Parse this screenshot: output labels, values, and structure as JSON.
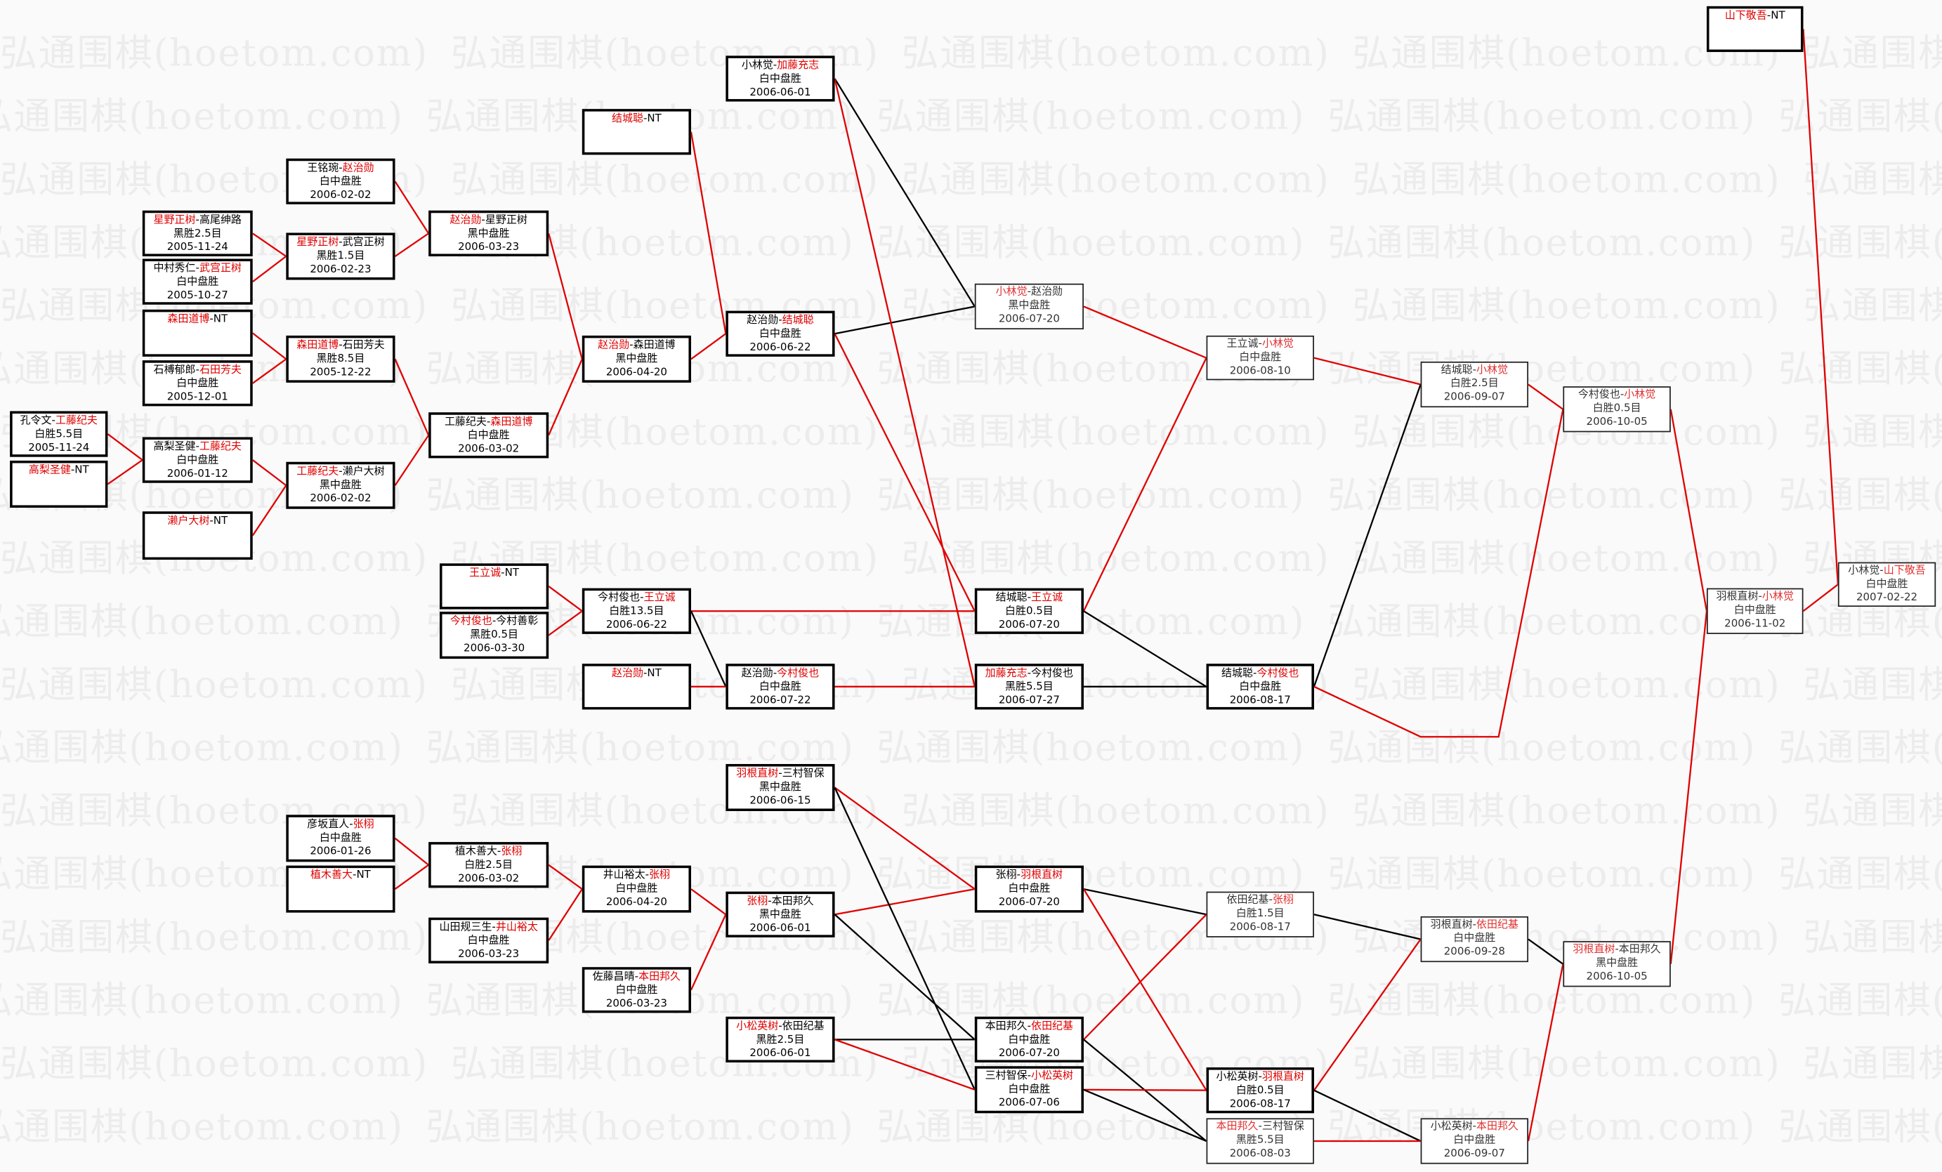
{
  "watermark": "弘通围棋(hoetom.com)",
  "colors": {
    "winner": "#e00000",
    "loser_line": "#000000",
    "winner_line": "#e00000"
  },
  "matches": [
    {
      "a": "孔令文",
      "b": "工藤纪夫",
      "w": 2,
      "result": "白胜5.5目",
      "date": "2005-11-24"
    },
    {
      "a": "高梨圣健",
      "b": "NT",
      "w": 1
    },
    {
      "a": "星野正树",
      "b": "高尾绅路",
      "w": 1,
      "result": "黑胜2.5目",
      "date": "2005-11-24"
    },
    {
      "a": "中村秀仁",
      "b": "武宫正树",
      "w": 2,
      "result": "白中盘胜",
      "date": "2005-10-27"
    },
    {
      "a": "森田道博",
      "b": "NT",
      "w": 1
    },
    {
      "a": "石榑郁郎",
      "b": "石田芳夫",
      "w": 2,
      "result": "白中盘胜",
      "date": "2005-12-01"
    },
    {
      "a": "高梨圣健",
      "b": "工藤纪夫",
      "w": 2,
      "result": "白中盘胜",
      "date": "2006-01-12"
    },
    {
      "a": "濑户大树",
      "b": "NT",
      "w": 1
    },
    {
      "a": "王铭琬",
      "b": "赵治勋",
      "w": 2,
      "result": "白中盘胜",
      "date": "2006-02-02"
    },
    {
      "a": "星野正树",
      "b": "武宫正树",
      "w": 1,
      "result": "黑胜1.5目",
      "date": "2006-02-23"
    },
    {
      "a": "森田道博",
      "b": "石田芳夫",
      "w": 1,
      "result": "黑胜8.5目",
      "date": "2005-12-22"
    },
    {
      "a": "工藤纪夫",
      "b": "濑户大树",
      "w": 1,
      "result": "黑中盘胜",
      "date": "2006-02-02"
    },
    {
      "a": "彦坂直人",
      "b": "张栩",
      "w": 2,
      "result": "白中盘胜",
      "date": "2006-01-26"
    },
    {
      "a": "植木善大",
      "b": "NT",
      "w": 1
    },
    {
      "a": "赵治勋",
      "b": "星野正树",
      "w": 1,
      "result": "黑中盘胜",
      "date": "2006-03-23"
    },
    {
      "a": "工藤纪夫",
      "b": "森田道博",
      "w": 2,
      "result": "白中盘胜",
      "date": "2006-03-02"
    },
    {
      "a": "王立诚",
      "b": "NT",
      "w": 1
    },
    {
      "a": "今村俊也",
      "b": "今村善彰",
      "w": 1,
      "result": "黑胜0.5目",
      "date": "2006-03-30"
    },
    {
      "a": "植木善大",
      "b": "张栩",
      "w": 2,
      "result": "白胜2.5目",
      "date": "2006-03-02"
    },
    {
      "a": "山田规三生",
      "b": "井山裕太",
      "w": 2,
      "result": "白中盘胜",
      "date": "2006-03-23"
    },
    {
      "a": "结城聪",
      "b": "NT",
      "w": 1
    },
    {
      "a": "赵治勋",
      "b": "森田道博",
      "w": 1,
      "result": "黑中盘胜",
      "date": "2006-04-20"
    },
    {
      "a": "今村俊也",
      "b": "王立诚",
      "w": 2,
      "result": "白胜13.5目",
      "date": "2006-06-22"
    },
    {
      "a": "赵治勋",
      "b": "NT",
      "w": 1
    },
    {
      "a": "井山裕太",
      "b": "张栩",
      "w": 2,
      "result": "白中盘胜",
      "date": "2006-04-20"
    },
    {
      "a": "佐藤昌晴",
      "b": "本田邦久",
      "w": 2,
      "result": "白中盘胜",
      "date": "2006-03-23"
    },
    {
      "a": "小林觉",
      "b": "加藤充志",
      "w": 2,
      "result": "白中盘胜",
      "date": "2006-06-01"
    },
    {
      "a": "赵治勋",
      "b": "结城聪",
      "w": 2,
      "result": "白中盘胜",
      "date": "2006-06-22"
    },
    {
      "a": "赵治勋",
      "b": "今村俊也",
      "w": 2,
      "result": "白中盘胜",
      "date": "2006-07-22"
    },
    {
      "a": "羽根直树",
      "b": "三村智保",
      "w": 1,
      "result": "黑中盘胜",
      "date": "2006-06-15"
    },
    {
      "a": "张栩",
      "b": "本田邦久",
      "w": 1,
      "result": "黑中盘胜",
      "date": "2006-06-01"
    },
    {
      "a": "小松英树",
      "b": "依田纪基",
      "w": 1,
      "result": "黑胜2.5目",
      "date": "2006-06-01"
    },
    {
      "a": "小林觉",
      "b": "赵治勋",
      "w": 1,
      "result": "黑中盘胜",
      "date": "2006-07-20"
    },
    {
      "a": "结城聪",
      "b": "王立诚",
      "w": 2,
      "result": "白胜0.5目",
      "date": "2006-07-20"
    },
    {
      "a": "加藤充志",
      "b": "今村俊也",
      "w": 1,
      "result": "黑胜5.5目",
      "date": "2006-07-27"
    },
    {
      "a": "张栩",
      "b": "羽根直树",
      "w": 2,
      "result": "白中盘胜",
      "date": "2006-07-20"
    },
    {
      "a": "本田邦久",
      "b": "依田纪基",
      "w": 2,
      "result": "白中盘胜",
      "date": "2006-07-20"
    },
    {
      "a": "三村智保",
      "b": "小松英树",
      "w": 2,
      "result": "白中盘胜",
      "date": "2006-07-06"
    },
    {
      "a": "王立诚",
      "b": "小林觉",
      "w": 2,
      "result": "白中盘胜",
      "date": "2006-08-10"
    },
    {
      "a": "结城聪",
      "b": "今村俊也",
      "w": 2,
      "result": "白中盘胜",
      "date": "2006-08-17"
    },
    {
      "a": "依田纪基",
      "b": "张栩",
      "w": 2,
      "result": "白胜1.5目",
      "date": "2006-08-17"
    },
    {
      "a": "小松英树",
      "b": "羽根直树",
      "w": 2,
      "result": "白胜0.5目",
      "date": "2006-08-17"
    },
    {
      "a": "本田邦久",
      "b": "三村智保",
      "w": 1,
      "result": "黑胜5.5目",
      "date": "2006-08-03"
    },
    {
      "a": "结城聪",
      "b": "小林觉",
      "w": 2,
      "result": "白胜2.5目",
      "date": "2006-09-07"
    },
    {
      "a": "羽根直树",
      "b": "依田纪基",
      "w": 2,
      "result": "白中盘胜",
      "date": "2006-09-28"
    },
    {
      "a": "小松英树",
      "b": "本田邦久",
      "w": 2,
      "result": "白中盘胜",
      "date": "2006-09-07"
    },
    {
      "a": "今村俊也",
      "b": "小林觉",
      "w": 2,
      "result": "白胜0.5目",
      "date": "2006-10-05"
    },
    {
      "a": "羽根直树",
      "b": "本田邦久",
      "w": 1,
      "result": "黑中盘胜",
      "date": "2006-10-05"
    },
    {
      "a": "山下敬吾",
      "b": "NT",
      "w": 1
    },
    {
      "a": "羽根直树",
      "b": "小林觉",
      "w": 2,
      "result": "白中盘胜",
      "date": "2006-11-02"
    },
    {
      "a": "小林觉",
      "b": "山下敬吾",
      "w": 2,
      "result": "白中盘胜",
      "date": "2007-02-22"
    }
  ]
}
